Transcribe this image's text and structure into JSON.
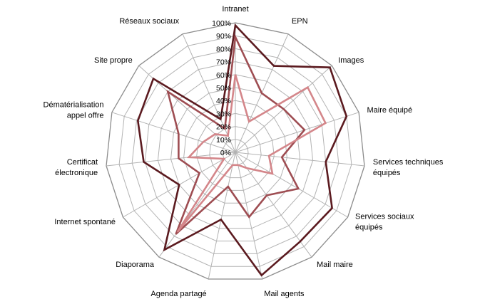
{
  "chart_data": {
    "type": "radar",
    "categories": [
      "Intranet",
      "EPN",
      "Images",
      "Maire équipé",
      "Services techniques équipés",
      "Services sociaux équipés",
      "Mail maire",
      "Mail agents",
      "Agenda partagé",
      "Diaporama",
      "Internet spontané",
      "Certificat électronique",
      "Dématérialisation appel offre",
      "Site propre",
      "Réseaux sociaux"
    ],
    "tick_labels": [
      "0%",
      "10%",
      "20%",
      "30%",
      "40%",
      "50%",
      "60%",
      "70%",
      "80%",
      "90%",
      "100%"
    ],
    "rlim": [
      0,
      100
    ],
    "grid": true,
    "legend": "none",
    "series": [
      {
        "color": "#5b1a1f",
        "values": [
          98,
          73,
          98,
          90,
          70,
          86,
          85,
          97,
          53,
          93,
          50,
          71,
          79,
          85,
          28
        ]
      },
      {
        "color": "#9e4d52",
        "values": [
          89,
          50,
          50,
          56,
          36,
          56,
          41,
          51,
          27,
          78,
          32,
          44,
          46,
          70,
          20
        ]
      },
      {
        "color": "#d4868a",
        "values": [
          60,
          26,
          75,
          73,
          26,
          33,
          15,
          10,
          10,
          76,
          10,
          36,
          26,
          21,
          14
        ]
      }
    ]
  }
}
